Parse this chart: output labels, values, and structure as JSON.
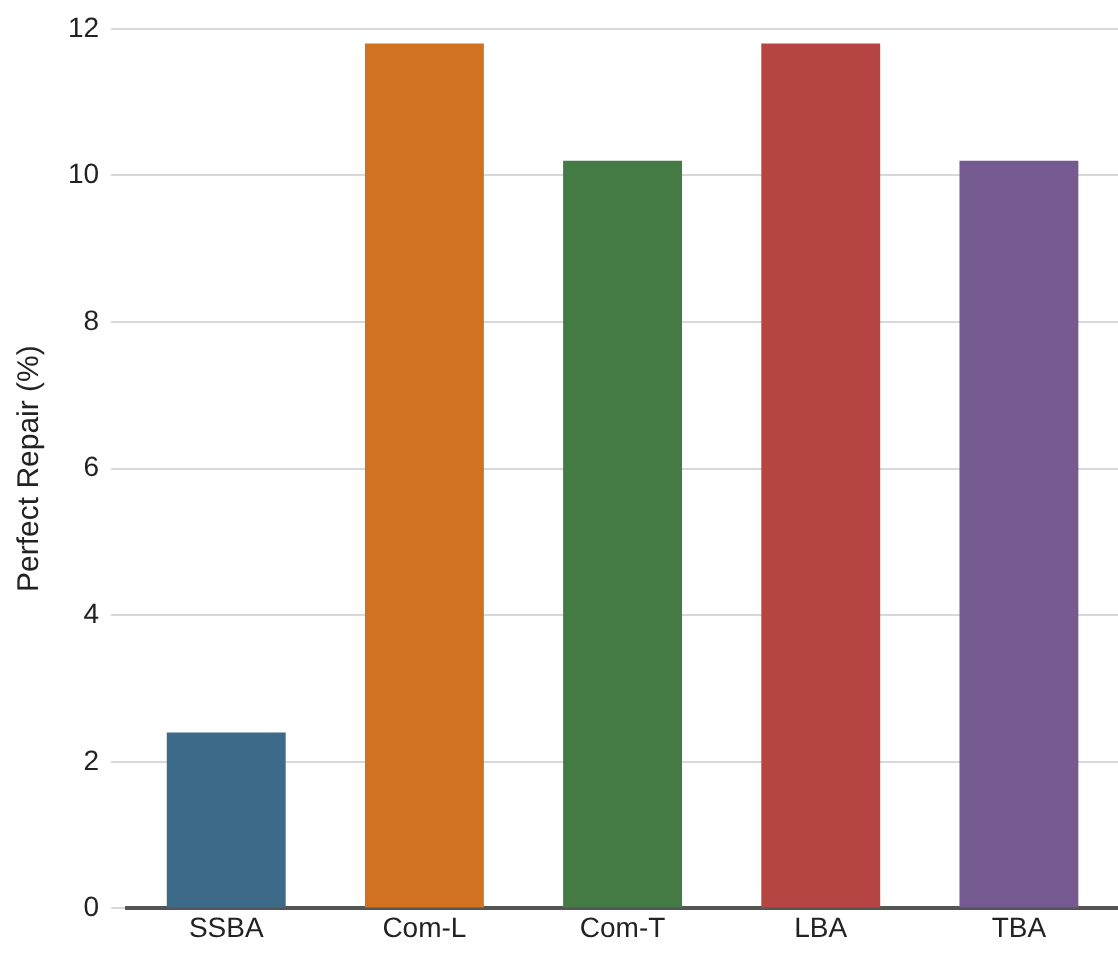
{
  "chart_data": {
    "type": "bar",
    "ylabel": "Perfect Repair (%)",
    "categories": [
      "SSBA",
      "Com-L",
      "Com-T",
      "LBA",
      "TBA"
    ],
    "values": [
      2.4,
      11.8,
      10.2,
      11.8,
      10.2
    ],
    "colors": [
      "#3e6a8a",
      "#d0721f",
      "#447a43",
      "#b54443",
      "#755a92"
    ],
    "ylim": [
      0,
      12
    ],
    "yticks": [
      0,
      2,
      4,
      6,
      8,
      10,
      12
    ],
    "grid": "y"
  }
}
